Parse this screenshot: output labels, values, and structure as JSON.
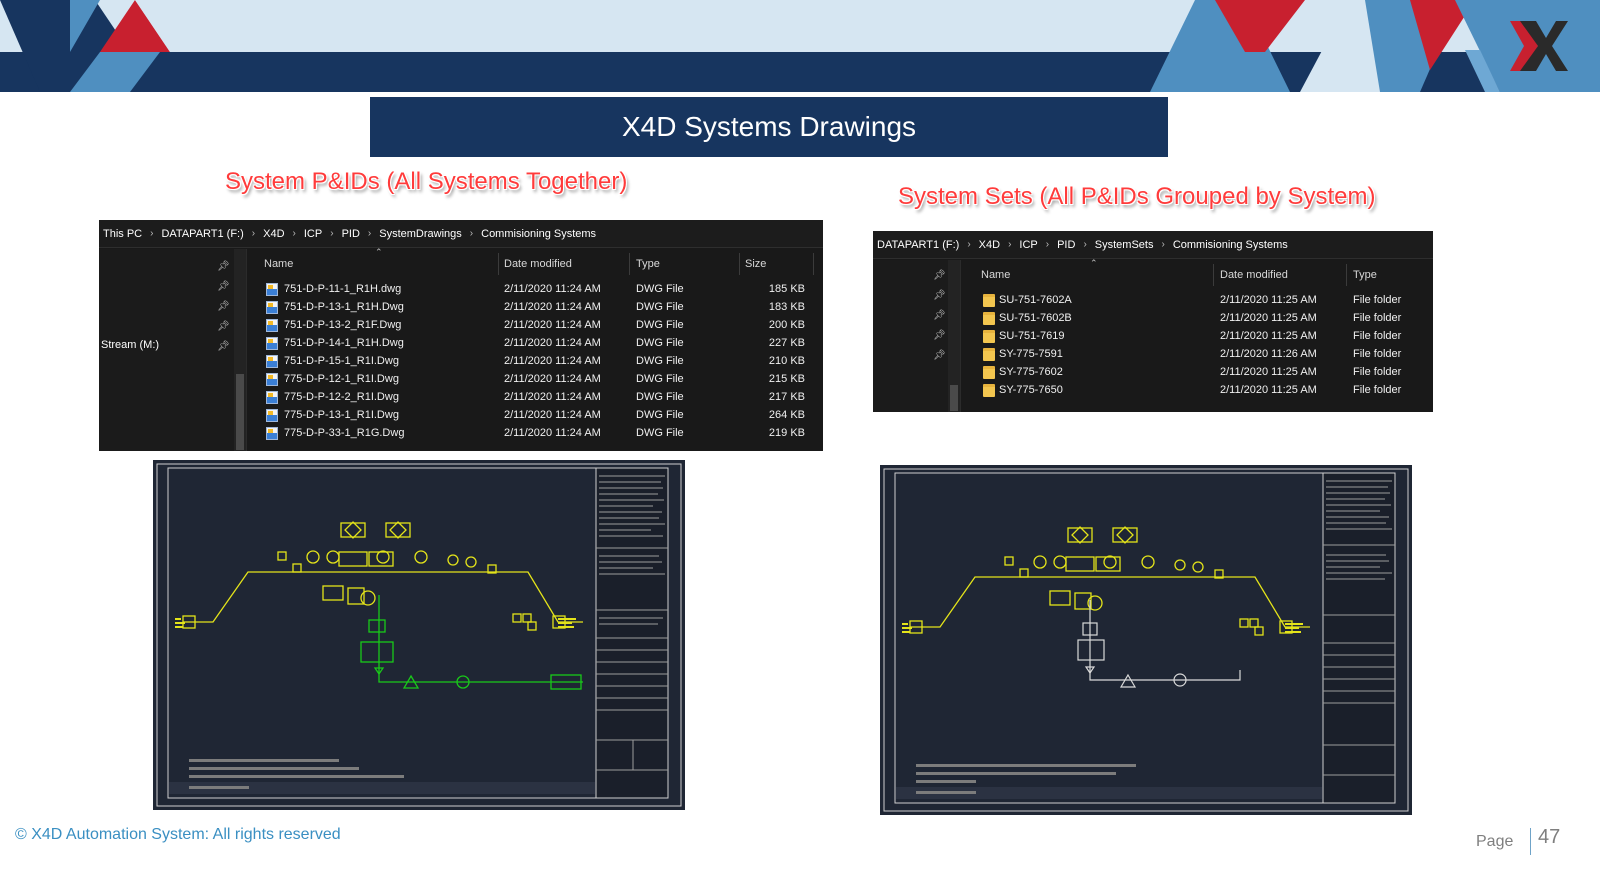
{
  "header": {
    "logo": "x4d-logo-icon",
    "colors": {
      "navy": "#17355f",
      "red": "#c8202f",
      "blue": "#4f8fc0",
      "light": "#d6e6f2"
    }
  },
  "title": "X4D Systems Drawings",
  "captions": {
    "left": "System P&IDs (All Systems Together)",
    "right": "System Sets (All P&IDs Grouped by System)"
  },
  "explorer_left": {
    "breadcrumb": [
      "This PC",
      "DATAPART1 (F:)",
      "X4D",
      "ICP",
      "PID",
      "SystemDrawings",
      "Commisioning Systems"
    ],
    "nav_label": "Stream (M:)",
    "columns": {
      "name": "Name",
      "date": "Date modified",
      "type": "Type",
      "size": "Size"
    },
    "rows": [
      {
        "name": "751-D-P-11-1_R1H.dwg",
        "date": "2/11/2020 11:24 AM",
        "type": "DWG File",
        "size": "185 KB"
      },
      {
        "name": "751-D-P-13-1_R1H.Dwg",
        "date": "2/11/2020 11:24 AM",
        "type": "DWG File",
        "size": "183 KB"
      },
      {
        "name": "751-D-P-13-2_R1F.Dwg",
        "date": "2/11/2020 11:24 AM",
        "type": "DWG File",
        "size": "200 KB"
      },
      {
        "name": "751-D-P-14-1_R1H.Dwg",
        "date": "2/11/2020 11:24 AM",
        "type": "DWG File",
        "size": "227 KB"
      },
      {
        "name": "751-D-P-15-1_R1I.Dwg",
        "date": "2/11/2020 11:24 AM",
        "type": "DWG File",
        "size": "210 KB"
      },
      {
        "name": "775-D-P-12-1_R1I.Dwg",
        "date": "2/11/2020 11:24 AM",
        "type": "DWG File",
        "size": "215 KB"
      },
      {
        "name": "775-D-P-12-2_R1I.Dwg",
        "date": "2/11/2020 11:24 AM",
        "type": "DWG File",
        "size": "217 KB"
      },
      {
        "name": "775-D-P-13-1_R1I.Dwg",
        "date": "2/11/2020 11:24 AM",
        "type": "DWG File",
        "size": "264 KB"
      },
      {
        "name": "775-D-P-33-1_R1G.Dwg",
        "date": "2/11/2020 11:24 AM",
        "type": "DWG File",
        "size": "219 KB"
      }
    ]
  },
  "explorer_right": {
    "breadcrumb": [
      "DATAPART1 (F:)",
      "X4D",
      "ICP",
      "PID",
      "SystemSets",
      "Commisioning Systems"
    ],
    "columns": {
      "name": "Name",
      "date": "Date modified",
      "type": "Type"
    },
    "rows": [
      {
        "name": "SU-751-7602A",
        "date": "2/11/2020 11:25 AM",
        "type": "File folder"
      },
      {
        "name": "SU-751-7602B",
        "date": "2/11/2020 11:25 AM",
        "type": "File folder"
      },
      {
        "name": "SU-751-7619",
        "date": "2/11/2020 11:25 AM",
        "type": "File folder"
      },
      {
        "name": "SY-775-7591",
        "date": "2/11/2020 11:26 AM",
        "type": "File folder"
      },
      {
        "name": "SY-775-7602",
        "date": "2/11/2020 11:25 AM",
        "type": "File folder"
      },
      {
        "name": "SY-775-7650",
        "date": "2/11/2020 11:25 AM",
        "type": "File folder"
      }
    ]
  },
  "cad_left": {
    "line_color": "#e4e41a",
    "highlight_color": "#19c919",
    "background": "#1f2634"
  },
  "cad_right": {
    "line_color": "#e4e41a",
    "highlight_color": "#d9d9d9",
    "background": "#1f2634"
  },
  "footer": {
    "copyright": "© X4D Automation System: All rights reserved",
    "page_label": "Page",
    "page_number": "47"
  }
}
